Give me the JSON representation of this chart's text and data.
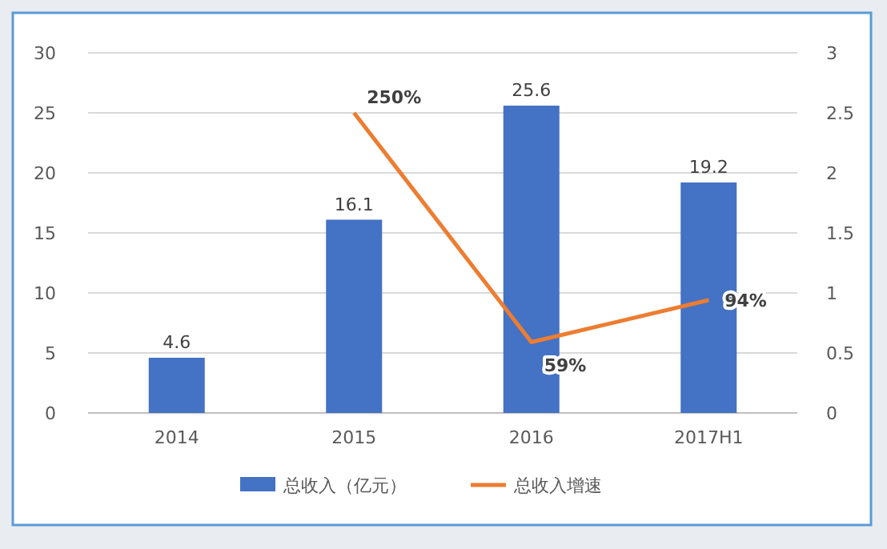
{
  "chart_data": {
    "type": "bar",
    "categories": [
      "2014",
      "2015",
      "2016",
      "2017H1"
    ],
    "series": [
      {
        "name": "总收入（亿元）",
        "color": "#4472c4",
        "values": [
          4.6,
          16.1,
          25.6,
          19.2
        ],
        "value_labels": [
          "4.6",
          "16.1",
          "25.6",
          "19.2"
        ]
      },
      {
        "name": "总收入增速",
        "type": "line",
        "axis": "y2",
        "color": "#ed7d31",
        "values": [
          null,
          2.5,
          0.59,
          0.94
        ],
        "value_labels": [
          null,
          "250%",
          "59%",
          "94%"
        ]
      }
    ],
    "ylim": [
      0,
      30
    ],
    "yticks": [
      0,
      5,
      10,
      15,
      20,
      25,
      30
    ],
    "y2lim": [
      0,
      3
    ],
    "y2ticks": [
      0,
      0.5,
      1,
      1.5,
      2,
      2.5,
      3
    ],
    "grid": "y",
    "legend": "bottom",
    "marker": "none",
    "line_style": "solid"
  }
}
